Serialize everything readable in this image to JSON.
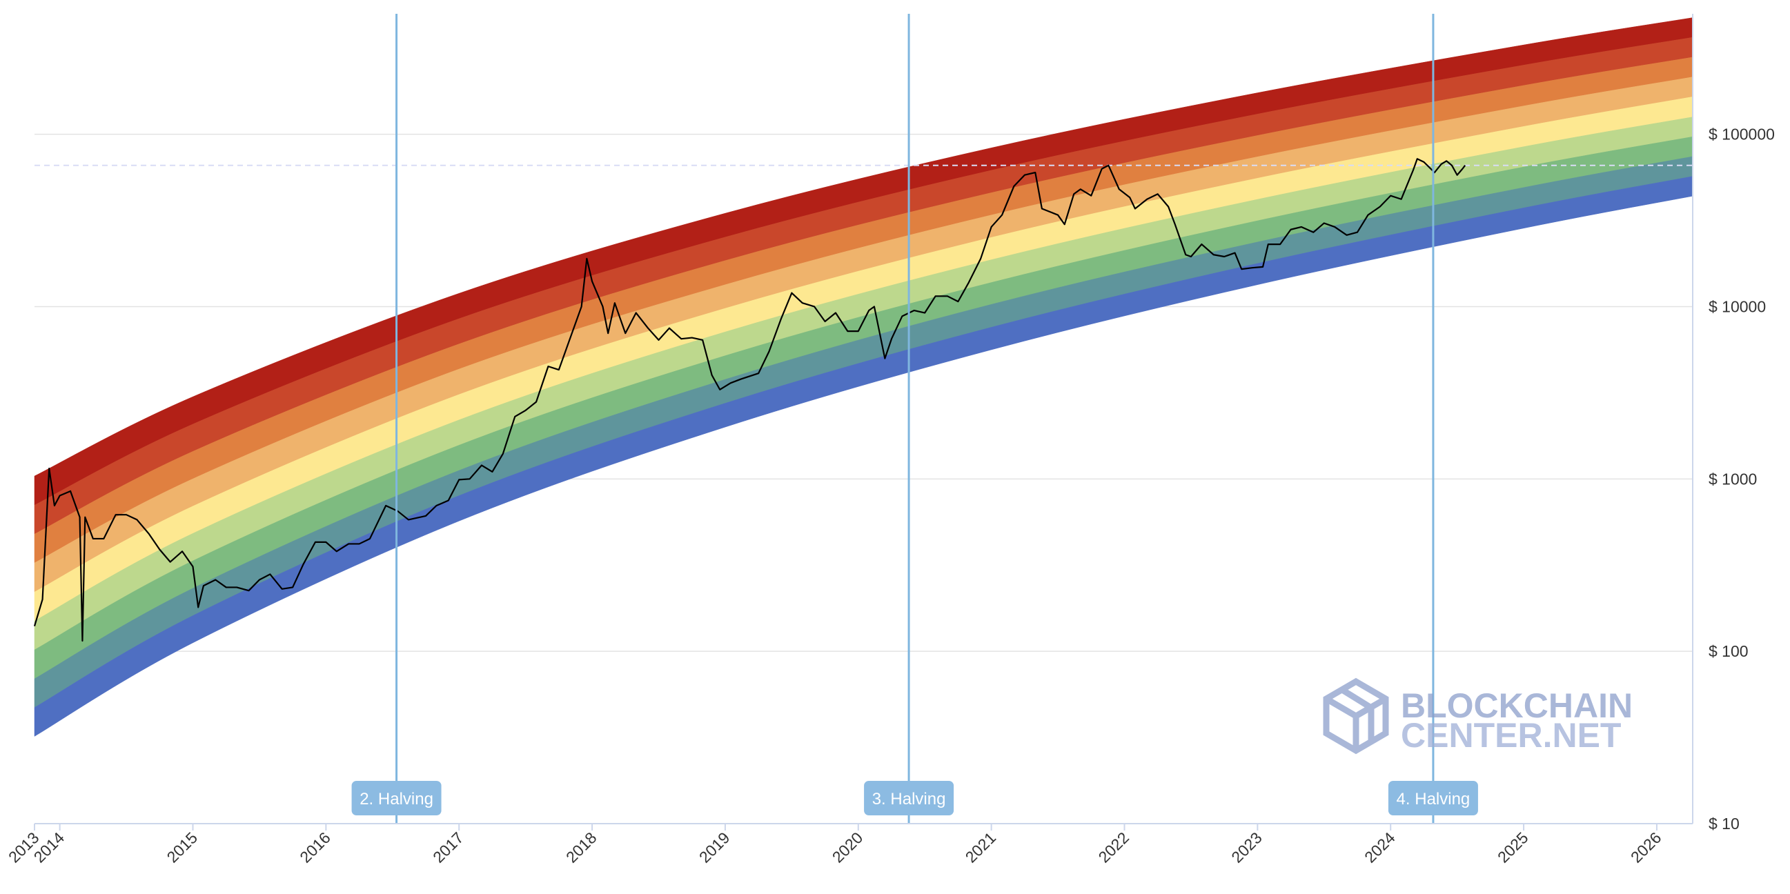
{
  "chart_data": {
    "type": "line",
    "log_y": true,
    "grid": true,
    "xlim": [
      2013.81,
      2026.27
    ],
    "ylim": [
      10,
      500000
    ],
    "xticks": [
      {
        "value": 2013.81,
        "label": "2013"
      },
      2014,
      2015,
      2016,
      2017,
      2018,
      2019,
      2020,
      2021,
      2022,
      2023,
      2024,
      2025,
      2026
    ],
    "yticks": [
      {
        "value": 10,
        "label": "$ 10"
      },
      {
        "value": 100,
        "label": "$ 100"
      },
      {
        "value": 1000,
        "label": "$ 1000"
      },
      {
        "value": 10000,
        "label": "$ 10000"
      },
      {
        "value": 100000,
        "label": "$ 100000"
      }
    ],
    "bands": {
      "x": [
        2013.81,
        2015,
        2017,
        2019,
        2021,
        2023,
        2025,
        2026.27
      ],
      "colors": [
        "#b22017",
        "#c9472b",
        "#e08040",
        "#efb36c",
        "#fde891",
        "#bdd88d",
        "#7ebb80",
        "#5f959c",
        "#4f6fc2"
      ],
      "edges": [
        [
          1040,
          3000,
          11940,
          34800,
          83400,
          174000,
          330000,
          475000
        ],
        [
          705,
          2080,
          8510,
          25300,
          61800,
          131000,
          252000,
          365000
        ],
        [
          479,
          1445,
          6070,
          18500,
          45800,
          98400,
          192000,
          280000
        ],
        [
          326,
          1002,
          4340,
          13400,
          34000,
          74000,
          146000,
          215000
        ],
        [
          221,
          695,
          3090,
          9770,
          25200,
          55600,
          111000,
          165000
        ],
        [
          150,
          483,
          2200,
          7130,
          18700,
          41900,
          84700,
          126000
        ],
        [
          102,
          335,
          1570,
          5190,
          13800,
          31500,
          64600,
          96800
        ],
        [
          69.3,
          232,
          1120,
          3780,
          10300,
          23700,
          49100,
          74300
        ],
        [
          47.2,
          161,
          800,
          2750,
          7590,
          17800,
          37400,
          57000
        ],
        [
          32.1,
          112,
          570,
          2000,
          5620,
          13400,
          28500,
          43800
        ]
      ]
    },
    "x": [
      2013.81,
      2013.87,
      2013.92,
      2013.96,
      2014.0,
      2014.08,
      2014.15,
      2014.17,
      2014.19,
      2014.25,
      2014.33,
      2014.42,
      2014.5,
      2014.58,
      2014.67,
      2014.75,
      2014.83,
      2014.92,
      2015.0,
      2015.04,
      2015.08,
      2015.17,
      2015.25,
      2015.33,
      2015.42,
      2015.5,
      2015.58,
      2015.67,
      2015.75,
      2015.83,
      2015.92,
      2016.0,
      2016.08,
      2016.17,
      2016.25,
      2016.33,
      2016.45,
      2016.54,
      2016.62,
      2016.75,
      2016.83,
      2016.92,
      2017.0,
      2017.08,
      2017.17,
      2017.25,
      2017.33,
      2017.42,
      2017.5,
      2017.58,
      2017.67,
      2017.75,
      2017.83,
      2017.92,
      2017.96,
      2018.0,
      2018.08,
      2018.12,
      2018.17,
      2018.25,
      2018.33,
      2018.42,
      2018.5,
      2018.58,
      2018.67,
      2018.75,
      2018.83,
      2018.9,
      2018.96,
      2019.04,
      2019.12,
      2019.25,
      2019.33,
      2019.42,
      2019.5,
      2019.58,
      2019.67,
      2019.75,
      2019.83,
      2019.92,
      2020.0,
      2020.08,
      2020.12,
      2020.2,
      2020.25,
      2020.33,
      2020.42,
      2020.5,
      2020.58,
      2020.67,
      2020.75,
      2020.83,
      2020.92,
      2021.0,
      2021.08,
      2021.17,
      2021.25,
      2021.33,
      2021.38,
      2021.5,
      2021.55,
      2021.62,
      2021.67,
      2021.75,
      2021.83,
      2021.88,
      2021.96,
      2022.04,
      2022.08,
      2022.17,
      2022.25,
      2022.33,
      2022.38,
      2022.46,
      2022.5,
      2022.58,
      2022.67,
      2022.75,
      2022.83,
      2022.88,
      2022.96,
      2023.04,
      2023.08,
      2023.17,
      2023.25,
      2023.33,
      2023.42,
      2023.5,
      2023.58,
      2023.67,
      2023.75,
      2023.83,
      2023.92,
      2024.0,
      2024.08,
      2024.17,
      2024.2,
      2024.25,
      2024.33,
      2024.38,
      2024.42,
      2024.46,
      2024.5,
      2024.54,
      2024.56
    ],
    "series": [
      {
        "color": "#000000",
        "values": [
          140,
          200,
          1150,
          700,
          800,
          850,
          600,
          115,
          600,
          450,
          450,
          620,
          620,
          580,
          480,
          390,
          330,
          380,
          310,
          180,
          240,
          260,
          235,
          235,
          225,
          260,
          280,
          230,
          235,
          320,
          430,
          430,
          380,
          420,
          420,
          450,
          700,
          650,
          580,
          610,
          700,
          750,
          990,
          1000,
          1200,
          1100,
          1400,
          2300,
          2500,
          2800,
          4500,
          4300,
          6400,
          10000,
          19000,
          14000,
          10000,
          7000,
          10500,
          7000,
          9200,
          7500,
          6400,
          7500,
          6500,
          6600,
          6400,
          4000,
          3300,
          3600,
          3800,
          4100,
          5500,
          8500,
          12000,
          10500,
          10000,
          8200,
          9200,
          7200,
          7200,
          9500,
          10000,
          5000,
          6500,
          8800,
          9500,
          9200,
          11500,
          11500,
          10700,
          13800,
          19000,
          29000,
          34000,
          50000,
          58000,
          60000,
          37000,
          34000,
          30000,
          45000,
          48000,
          44000,
          63000,
          66000,
          48000,
          43000,
          37000,
          42000,
          45000,
          38000,
          30000,
          20000,
          19500,
          23000,
          20000,
          19500,
          20500,
          16500,
          16800,
          17000,
          23000,
          23000,
          28000,
          29000,
          27000,
          30500,
          29000,
          26000,
          27000,
          34000,
          38000,
          44000,
          42000,
          62000,
          72000,
          69000,
          60000,
          67000,
          70000,
          66000,
          58000,
          63000,
          66000
        ]
      }
    ],
    "current_price": 66000,
    "annotations": [
      {
        "x": 2016.53,
        "label": "2. Halving"
      },
      {
        "x": 2020.38,
        "label": "3. Halving"
      },
      {
        "x": 2024.32,
        "label": "4. Halving"
      }
    ],
    "watermark": {
      "line1": "BLOCKCHAIN",
      "line2": "CENTER.NET"
    }
  }
}
